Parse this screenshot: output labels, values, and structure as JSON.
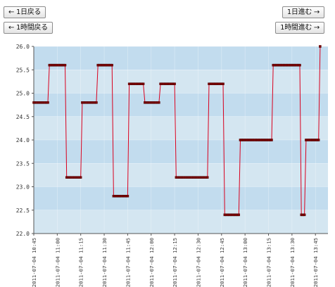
{
  "nav": {
    "prev_day": "← 1日戻る",
    "prev_hour": "← 1時間戻る",
    "next_day": "1日進む →",
    "next_hour": "1時間進む →"
  },
  "colors": {
    "band_light": "#d4e6f1",
    "band_dark": "#c2dcee",
    "line": "#d9001e",
    "marker": "#7a0000"
  },
  "chart_data": {
    "type": "line",
    "title": "",
    "xlabel": "",
    "ylabel": "",
    "ylim": [
      22.0,
      26.0
    ],
    "xlim": [
      "2011-07-04 10:45",
      "2011-07-04 13:53"
    ],
    "y_ticks": [
      "22.0",
      "22.5",
      "23.0",
      "23.5",
      "24.0",
      "24.5",
      "25.0",
      "25.5",
      "26.0"
    ],
    "x_ticks": [
      "2011-07-04 10:45",
      "2011-07-04 11:00",
      "2011-07-04 11:15",
      "2011-07-04 11:30",
      "2011-07-04 11:45",
      "2011-07-04 12:00",
      "2011-07-04 12:15",
      "2011-07-04 12:30",
      "2011-07-04 12:45",
      "2011-07-04 13:00",
      "2011-07-04 13:15",
      "2011-07-04 13:30",
      "2011-07-04 13:45"
    ],
    "grid": true,
    "series": [
      {
        "name": "",
        "points": [
          {
            "start": "2011-07-04 10:45",
            "end": "2011-07-04 10:54",
            "y": 24.8
          },
          {
            "start": "2011-07-04 10:55",
            "end": "2011-07-04 11:05",
            "y": 25.6
          },
          {
            "start": "2011-07-04 11:06",
            "end": "2011-07-04 11:15",
            "y": 23.2
          },
          {
            "start": "2011-07-04 11:16",
            "end": "2011-07-04 11:25",
            "y": 24.8
          },
          {
            "start": "2011-07-04 11:26",
            "end": "2011-07-04 11:35",
            "y": 25.6
          },
          {
            "start": "2011-07-04 11:36",
            "end": "2011-07-04 11:45",
            "y": 22.8
          },
          {
            "start": "2011-07-04 11:46",
            "end": "2011-07-04 11:55",
            "y": 25.2
          },
          {
            "start": "2011-07-04 11:56",
            "end": "2011-07-04 12:05",
            "y": 24.8
          },
          {
            "start": "2011-07-04 12:06",
            "end": "2011-07-04 12:15",
            "y": 25.2
          },
          {
            "start": "2011-07-04 12:16",
            "end": "2011-07-04 12:36",
            "y": 23.2
          },
          {
            "start": "2011-07-04 12:37",
            "end": "2011-07-04 12:46",
            "y": 25.2
          },
          {
            "start": "2011-07-04 12:47",
            "end": "2011-07-04 12:56",
            "y": 22.4
          },
          {
            "start": "2011-07-04 12:57",
            "end": "2011-07-04 13:17",
            "y": 24.0
          },
          {
            "start": "2011-07-04 13:18",
            "end": "2011-07-04 13:35",
            "y": 25.6
          },
          {
            "start": "2011-07-04 13:36",
            "end": "2011-07-04 13:38",
            "y": 22.4
          },
          {
            "start": "2011-07-04 13:39",
            "end": "2011-07-04 13:47",
            "y": 24.0
          },
          {
            "start": "2011-07-04 13:48",
            "end": "2011-07-04 13:48",
            "y": 26.0
          }
        ]
      }
    ]
  }
}
